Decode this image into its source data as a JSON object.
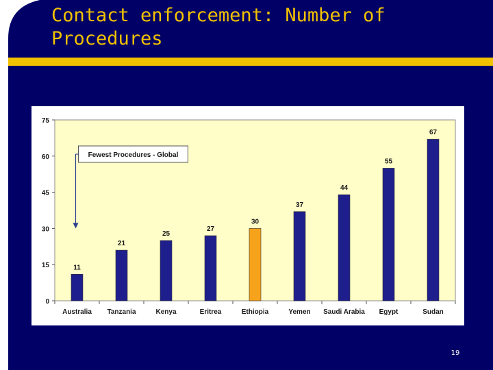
{
  "title": "Contact enforcement:  Number of\nProcedures",
  "page_number": "19",
  "colors": {
    "background": "#000066",
    "title": "#f2c200",
    "accent_bar": "#f2c200",
    "plot_area": "#fffdc8",
    "bar": "#1e1e8c",
    "highlight_bar": "#f7a21b"
  },
  "chart_data": {
    "type": "bar",
    "title": "",
    "xlabel": "",
    "ylabel": "",
    "categories": [
      "Australia",
      "Tanzania",
      "Kenya",
      "Eritrea",
      "Ethiopia",
      "Yemen",
      "Saudi Arabia",
      "Egypt",
      "Sudan"
    ],
    "values": [
      11,
      21,
      25,
      27,
      30,
      37,
      44,
      55,
      67
    ],
    "data_labels": [
      "11",
      "21",
      "25",
      "27",
      "30",
      "37",
      "44",
      "55",
      "67"
    ],
    "highlight": "Ethiopia",
    "ylim": [
      0,
      75
    ],
    "yticks": [
      0,
      15,
      30,
      45,
      60,
      75
    ],
    "ytick_labels": [
      "0",
      "15",
      "30",
      "45",
      "60",
      "75"
    ],
    "grid": false,
    "legend": "none",
    "annotation": {
      "text": "Fewest Procedures - Global",
      "target_category": "Australia",
      "target_value": 30
    }
  }
}
